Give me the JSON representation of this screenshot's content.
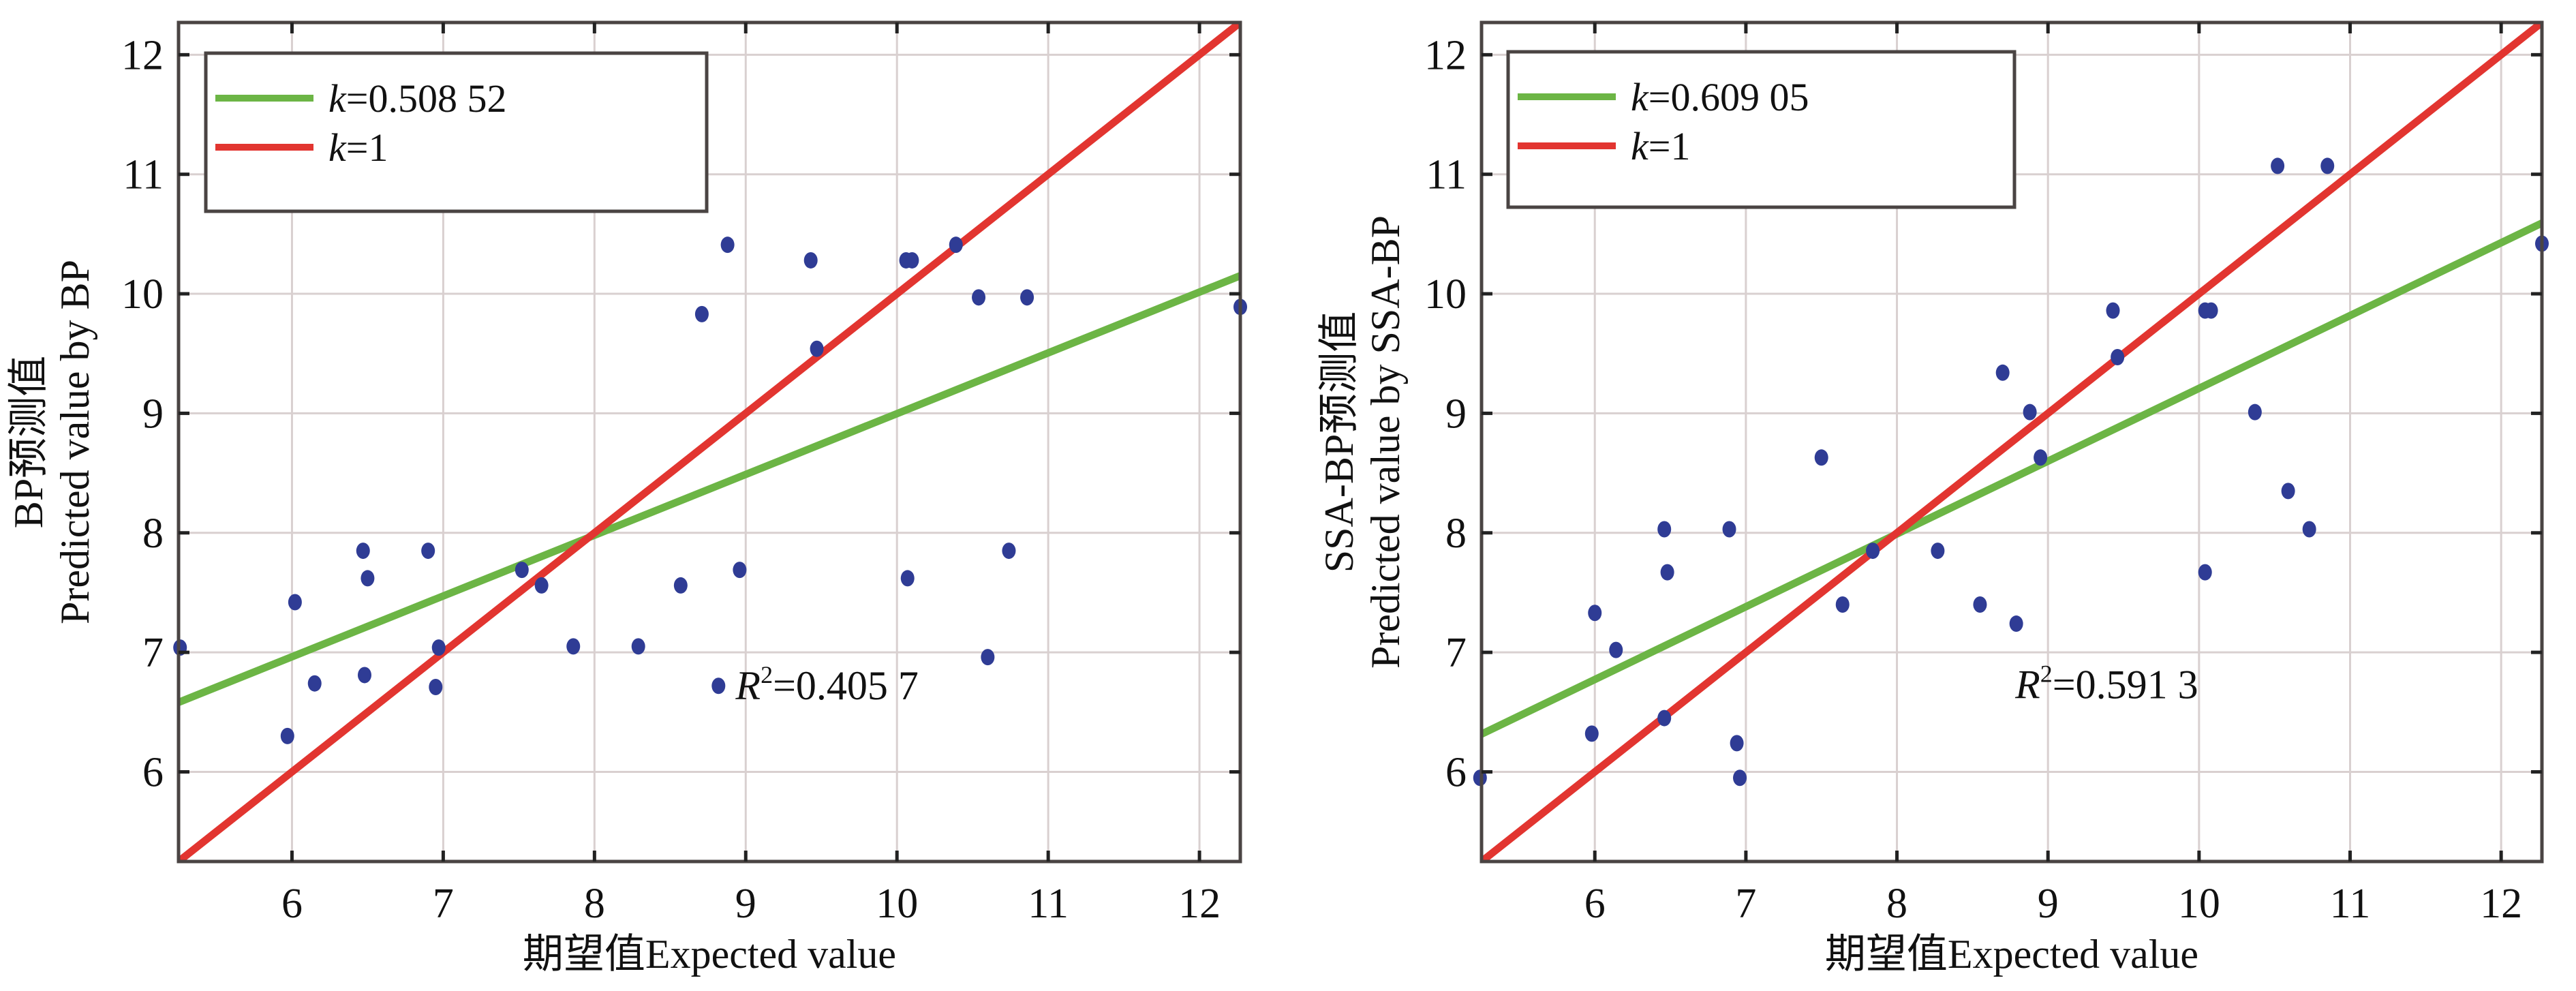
{
  "figure": {
    "panels": 2
  },
  "colors": {
    "fit_line": "#6cb545",
    "identity_line": "#e23530",
    "points": "#2f3c95",
    "grid": "#d9d0d0",
    "frame": "#4a4443"
  },
  "chart_data": [
    {
      "type": "scatter",
      "title": "",
      "xlabel": "期望值Expected value",
      "ylabel_line1": "BP预测值",
      "ylabel_line2": "Predicted value by BP",
      "xlim": [
        5.25,
        12.27
      ],
      "ylim": [
        5.25,
        12.27
      ],
      "xticks": [
        6,
        7,
        8,
        9,
        10,
        11,
        12
      ],
      "yticks": [
        6,
        7,
        8,
        9,
        10,
        11,
        12
      ],
      "grid": true,
      "legend_position": "top-left",
      "legend": [
        {
          "label_var": "k",
          "label_rest": "=0.508 52",
          "series": "fit"
        },
        {
          "label_var": "k",
          "label_rest": "=1",
          "series": "identity"
        }
      ],
      "annotation": {
        "var": "R",
        "sup": "2",
        "rest": "=0.405 7",
        "x": 8.87,
        "y": 6.72
      },
      "lines": [
        {
          "name": "fit",
          "slope": 0.50852,
          "through": [
            8.0,
            7.98
          ]
        },
        {
          "name": "identity",
          "slope": 1,
          "through": [
            8.0,
            8.0
          ]
        }
      ],
      "points": [
        [
          5.26,
          7.04
        ],
        [
          5.97,
          6.3
        ],
        [
          6.02,
          7.42
        ],
        [
          6.15,
          6.74
        ],
        [
          6.47,
          7.85
        ],
        [
          6.5,
          7.62
        ],
        [
          6.48,
          6.81
        ],
        [
          6.9,
          7.85
        ],
        [
          6.97,
          7.04
        ],
        [
          6.95,
          6.71
        ],
        [
          7.52,
          7.69
        ],
        [
          7.65,
          7.56
        ],
        [
          7.86,
          7.05
        ],
        [
          8.29,
          7.05
        ],
        [
          8.57,
          7.56
        ],
        [
          8.71,
          9.83
        ],
        [
          8.88,
          10.41
        ],
        [
          8.96,
          7.69
        ],
        [
          8.82,
          6.72
        ],
        [
          9.43,
          10.28
        ],
        [
          9.47,
          9.54
        ],
        [
          10.06,
          10.28
        ],
        [
          10.1,
          10.28
        ],
        [
          10.07,
          7.62
        ],
        [
          10.39,
          10.41
        ],
        [
          10.54,
          9.97
        ],
        [
          10.86,
          9.97
        ],
        [
          10.74,
          7.85
        ],
        [
          10.6,
          6.96
        ],
        [
          12.27,
          9.89
        ]
      ]
    },
    {
      "type": "scatter",
      "title": "",
      "xlabel": "期望值Expected value",
      "ylabel_line1": "SSA-BP预测值",
      "ylabel_line2": "Predicted value by SSA-BP",
      "xlim": [
        5.25,
        12.27
      ],
      "ylim": [
        5.25,
        12.27
      ],
      "xticks": [
        6,
        7,
        8,
        9,
        10,
        11,
        12
      ],
      "yticks": [
        6,
        7,
        8,
        9,
        10,
        11,
        12
      ],
      "grid": true,
      "legend_position": "top-left",
      "legend": [
        {
          "label_var": "k",
          "label_rest": "=0.609 05",
          "series": "fit"
        },
        {
          "label_var": "k",
          "label_rest": "=1",
          "series": "identity"
        }
      ],
      "annotation": {
        "var": "R",
        "sup": "2",
        "rest": "=0.591 3",
        "x": 8.72,
        "y": 6.73
      },
      "lines": [
        {
          "name": "fit",
          "slope": 0.60905,
          "through": [
            7.9,
            7.93
          ]
        },
        {
          "name": "identity",
          "slope": 1,
          "through": [
            8.0,
            8.0
          ]
        }
      ],
      "points": [
        [
          5.24,
          5.95
        ],
        [
          5.98,
          6.32
        ],
        [
          6.0,
          7.33
        ],
        [
          6.14,
          7.02
        ],
        [
          6.46,
          8.03
        ],
        [
          6.48,
          7.67
        ],
        [
          6.46,
          6.45
        ],
        [
          6.89,
          8.03
        ],
        [
          6.94,
          6.24
        ],
        [
          6.96,
          5.95
        ],
        [
          7.5,
          8.63
        ],
        [
          7.64,
          7.4
        ],
        [
          7.84,
          7.85
        ],
        [
          8.27,
          7.85
        ],
        [
          8.55,
          7.4
        ],
        [
          8.7,
          9.34
        ],
        [
          8.79,
          7.24
        ],
        [
          8.88,
          9.01
        ],
        [
          8.95,
          8.63
        ],
        [
          9.43,
          9.86
        ],
        [
          9.46,
          9.47
        ],
        [
          10.04,
          9.86
        ],
        [
          10.08,
          9.86
        ],
        [
          10.04,
          7.67
        ],
        [
          10.37,
          9.01
        ],
        [
          10.52,
          11.07
        ],
        [
          10.59,
          8.35
        ],
        [
          10.73,
          8.03
        ],
        [
          10.85,
          11.07
        ],
        [
          12.27,
          10.42
        ]
      ]
    }
  ]
}
